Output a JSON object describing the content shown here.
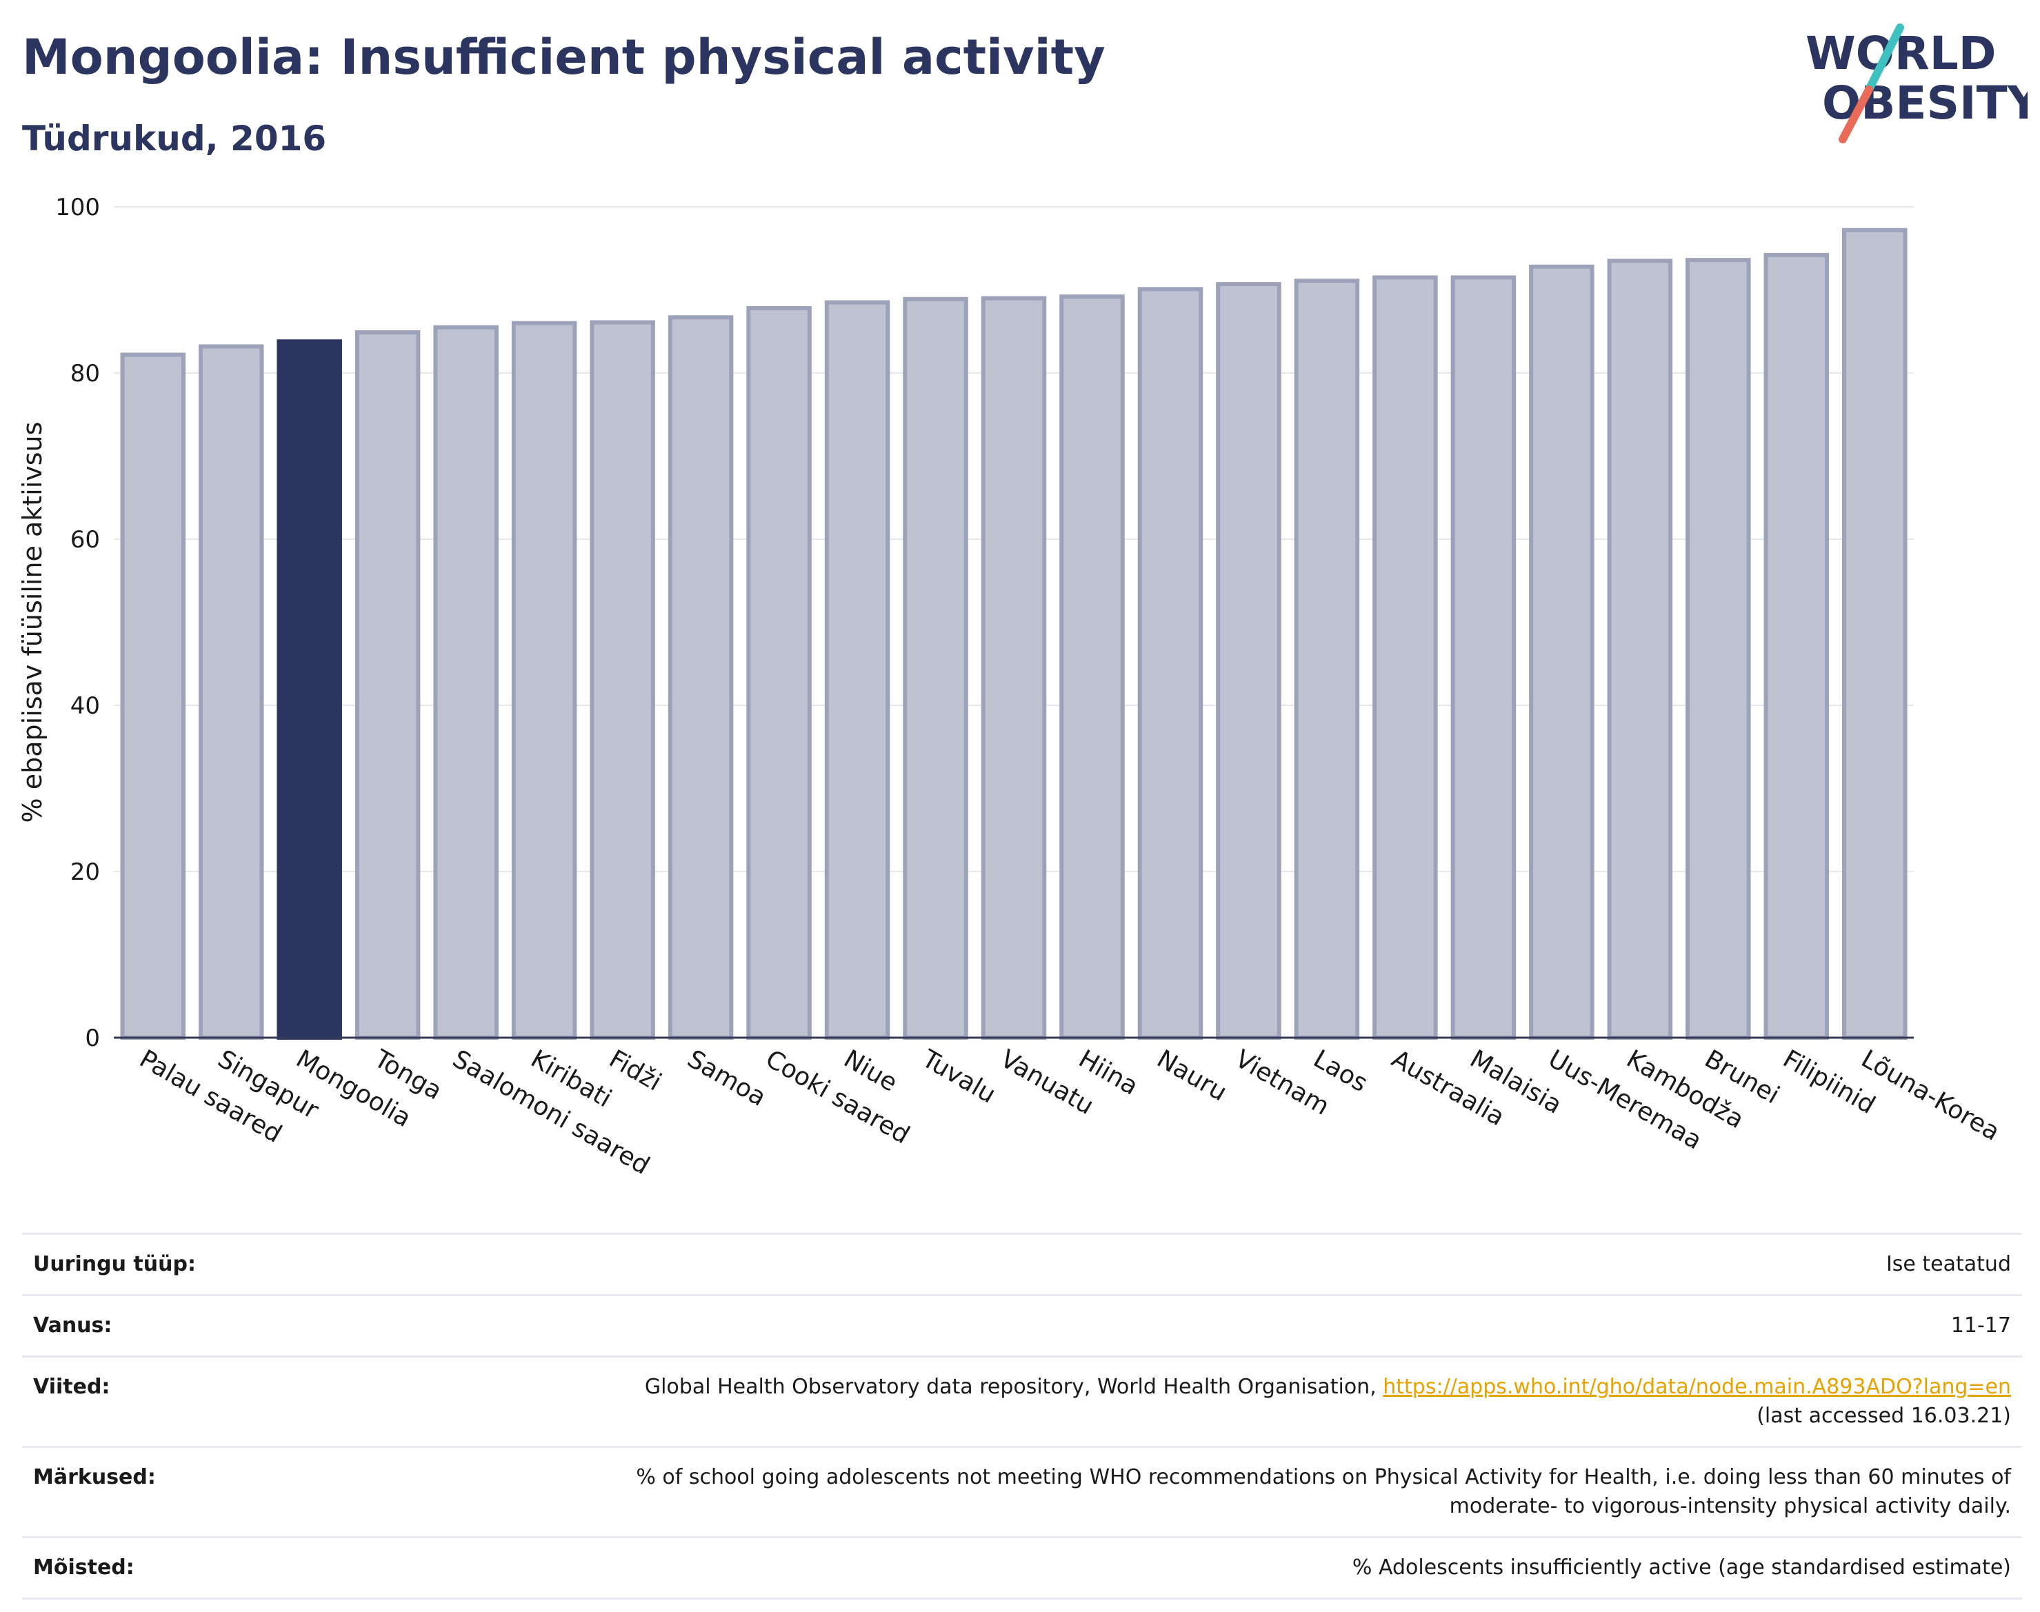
{
  "title": "Mongoolia: Insufficient physical activity",
  "subtitle": "Tüdrukud, 2016",
  "logo": {
    "line1": "WORLD",
    "line2": "OBESITY",
    "colors": {
      "navy": "#2b3560",
      "teal": "#3fc1c0",
      "coral": "#e86a58"
    }
  },
  "chart_data": {
    "type": "bar",
    "ylabel": "% ebapiisav füüsiline aktiivsus",
    "ylim": [
      0,
      100
    ],
    "yticks": [
      0,
      20,
      40,
      60,
      80,
      100
    ],
    "grid": true,
    "highlight": "Mongoolia",
    "colors": {
      "bar": "#bfc3d1",
      "bar_edge": "#9ca2b9",
      "highlight": "#2b3560"
    },
    "categories": [
      "Palau saared",
      "Singapur",
      "Mongoolia",
      "Tonga",
      "Saalomoni saared",
      "Kiribati",
      "Fidži",
      "Samoa",
      "Cooki saared",
      "Niue",
      "Tuvalu",
      "Vanuatu",
      "Hiina",
      "Nauru",
      "Vietnam",
      "Laos",
      "Austraalia",
      "Malaisia",
      "Uus-Meremaa",
      "Kambodža",
      "Brunei",
      "Filipiinid",
      "Lõuna-Korea"
    ],
    "values": [
      82.2,
      83.2,
      83.8,
      84.9,
      85.5,
      86.0,
      86.1,
      86.7,
      87.8,
      88.5,
      88.9,
      89.0,
      89.2,
      90.1,
      90.7,
      91.1,
      91.5,
      91.5,
      92.8,
      93.5,
      93.6,
      94.2,
      97.2
    ]
  },
  "info": {
    "rows": [
      {
        "key": "Uuringu tüüp:",
        "value": "Ise teatatud"
      },
      {
        "key": "Vanus:",
        "value": "11-17"
      },
      {
        "key": "Viited:",
        "value": "Global Health Observatory data repository, World Health Organisation, ",
        "link": "https://apps.who.int/gho/data/node.main.A893ADO?lang=en",
        "value2": "(last accessed 16.03.21)"
      },
      {
        "key": "Märkused:",
        "value": "% of school going adolescents not meeting WHO recommendations on Physical Activity for Health, i.e. doing less than 60 minutes of",
        "value2": "moderate- to vigorous-intensity physical activity daily."
      },
      {
        "key": "Mõisted:",
        "value": "% Adolescents insufficiently active (age standardised estimate)"
      }
    ]
  }
}
